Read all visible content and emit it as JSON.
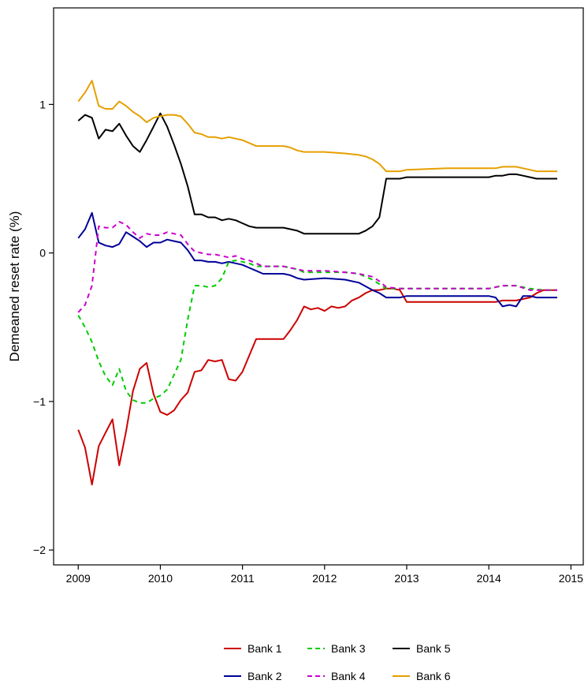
{
  "chart_data": {
    "type": "line",
    "title": "",
    "xlabel": "",
    "ylabel": "Demeaned reset rate (%)",
    "xlim": [
      2008.7,
      2015.15
    ],
    "ylim": [
      -2.1,
      1.65
    ],
    "xticks": [
      2009,
      2010,
      2011,
      2012,
      2013,
      2014,
      2015
    ],
    "xtick_labels": [
      "2009",
      "2010",
      "2011",
      "2012",
      "2013",
      "2014",
      "2015"
    ],
    "yticks": [
      -2,
      -1,
      0,
      1
    ],
    "ytick_labels": [
      "−2",
      "−1",
      "0",
      "1"
    ],
    "grid": false,
    "legend_position": "bottom",
    "series": [
      {
        "name": "Bank 1",
        "color": "#cc0000",
        "dash": "solid",
        "x": [
          2009.0,
          2009.083,
          2009.167,
          2009.25,
          2009.333,
          2009.417,
          2009.5,
          2009.583,
          2009.667,
          2009.75,
          2009.833,
          2009.917,
          2010.0,
          2010.083,
          2010.167,
          2010.25,
          2010.333,
          2010.417,
          2010.5,
          2010.583,
          2010.667,
          2010.75,
          2010.833,
          2010.917,
          2011.0,
          2011.083,
          2011.167,
          2011.25,
          2011.333,
          2011.417,
          2011.5,
          2011.583,
          2011.667,
          2011.75,
          2011.833,
          2011.917,
          2012.0,
          2012.083,
          2012.167,
          2012.25,
          2012.333,
          2012.417,
          2012.5,
          2012.583,
          2012.667,
          2012.75,
          2012.833,
          2012.917,
          2013.0,
          2013.5,
          2014.0,
          2014.083,
          2014.167,
          2014.25,
          2014.333,
          2014.417,
          2014.5,
          2014.583,
          2014.667,
          2014.833
        ],
        "y": [
          -1.19,
          -1.31,
          -1.56,
          -1.3,
          -1.21,
          -1.12,
          -1.43,
          -1.2,
          -0.93,
          -0.78,
          -0.74,
          -0.95,
          -1.07,
          -1.09,
          -1.06,
          -0.99,
          -0.94,
          -0.8,
          -0.79,
          -0.72,
          -0.73,
          -0.72,
          -0.85,
          -0.86,
          -0.8,
          -0.69,
          -0.58,
          -0.58,
          -0.58,
          -0.58,
          -0.58,
          -0.52,
          -0.45,
          -0.36,
          -0.38,
          -0.37,
          -0.39,
          -0.36,
          -0.37,
          -0.36,
          -0.32,
          -0.3,
          -0.27,
          -0.25,
          -0.25,
          -0.24,
          -0.24,
          -0.25,
          -0.33,
          -0.33,
          -0.33,
          -0.33,
          -0.32,
          -0.32,
          -0.32,
          -0.31,
          -0.3,
          -0.27,
          -0.25,
          -0.25
        ]
      },
      {
        "name": "Bank 2",
        "color": "#000099",
        "dash": "solid",
        "x": [
          2009.0,
          2009.083,
          2009.167,
          2009.25,
          2009.333,
          2009.417,
          2009.5,
          2009.583,
          2009.667,
          2009.75,
          2009.833,
          2009.917,
          2010.0,
          2010.083,
          2010.167,
          2010.25,
          2010.333,
          2010.417,
          2010.5,
          2010.583,
          2010.667,
          2010.75,
          2010.833,
          2010.917,
          2011.0,
          2011.083,
          2011.167,
          2011.25,
          2011.5,
          2011.583,
          2011.667,
          2011.75,
          2012.0,
          2012.25,
          2012.417,
          2012.583,
          2012.667,
          2012.75,
          2012.917,
          2013.0,
          2013.5,
          2014.0,
          2014.083,
          2014.167,
          2014.25,
          2014.333,
          2014.417,
          2014.5,
          2014.583,
          2014.833
        ],
        "y": [
          0.1,
          0.16,
          0.27,
          0.07,
          0.05,
          0.04,
          0.06,
          0.14,
          0.11,
          0.08,
          0.04,
          0.07,
          0.07,
          0.09,
          0.08,
          0.07,
          0.02,
          -0.05,
          -0.05,
          -0.06,
          -0.06,
          -0.07,
          -0.06,
          -0.07,
          -0.08,
          -0.1,
          -0.12,
          -0.14,
          -0.14,
          -0.15,
          -0.17,
          -0.18,
          -0.17,
          -0.18,
          -0.2,
          -0.25,
          -0.27,
          -0.3,
          -0.3,
          -0.29,
          -0.29,
          -0.29,
          -0.3,
          -0.36,
          -0.35,
          -0.36,
          -0.29,
          -0.29,
          -0.3,
          -0.3
        ]
      },
      {
        "name": "Bank 3",
        "color": "#00cc00",
        "dash": "dashed",
        "x": [
          2009.0,
          2009.083,
          2009.167,
          2009.25,
          2009.333,
          2009.417,
          2009.5,
          2009.583,
          2009.667,
          2009.75,
          2009.833,
          2009.917,
          2010.0,
          2010.083,
          2010.167,
          2010.25,
          2010.333,
          2010.417,
          2010.5,
          2010.583,
          2010.667,
          2010.75,
          2010.833,
          2010.917,
          2011.0,
          2011.083,
          2011.167,
          2011.5,
          2011.667,
          2011.75,
          2012.0,
          2012.25,
          2012.417,
          2012.583,
          2012.75,
          2012.917,
          2013.0,
          2013.5,
          2014.0,
          2014.167,
          2014.333,
          2014.5,
          2014.667,
          2014.833
        ],
        "y": [
          -0.42,
          -0.5,
          -0.6,
          -0.73,
          -0.83,
          -0.89,
          -0.78,
          -0.93,
          -0.99,
          -1.01,
          -1.01,
          -0.98,
          -0.96,
          -0.92,
          -0.82,
          -0.72,
          -0.45,
          -0.22,
          -0.22,
          -0.23,
          -0.22,
          -0.17,
          -0.06,
          -0.05,
          -0.06,
          -0.07,
          -0.09,
          -0.09,
          -0.11,
          -0.13,
          -0.13,
          -0.13,
          -0.14,
          -0.18,
          -0.24,
          -0.24,
          -0.24,
          -0.24,
          -0.24,
          -0.22,
          -0.22,
          -0.24,
          -0.25,
          -0.25
        ]
      },
      {
        "name": "Bank 4",
        "color": "#cc00cc",
        "dash": "dashed",
        "x": [
          2009.0,
          2009.083,
          2009.167,
          2009.25,
          2009.333,
          2009.417,
          2009.5,
          2009.583,
          2009.667,
          2009.75,
          2009.833,
          2009.917,
          2010.0,
          2010.083,
          2010.167,
          2010.25,
          2010.333,
          2010.417,
          2010.5,
          2010.583,
          2010.667,
          2010.75,
          2010.833,
          2010.917,
          2011.0,
          2011.083,
          2011.167,
          2011.25,
          2011.5,
          2011.583,
          2011.667,
          2011.75,
          2012.0,
          2012.25,
          2012.417,
          2012.583,
          2012.667,
          2012.75,
          2012.917,
          2013.0,
          2013.5,
          2014.0,
          2014.167,
          2014.333,
          2014.5,
          2014.833
        ],
        "y": [
          -0.4,
          -0.35,
          -0.22,
          0.18,
          0.17,
          0.17,
          0.21,
          0.19,
          0.14,
          0.1,
          0.13,
          0.12,
          0.12,
          0.14,
          0.13,
          0.12,
          0.06,
          0.01,
          0.0,
          -0.01,
          -0.01,
          -0.02,
          -0.03,
          -0.02,
          -0.04,
          -0.05,
          -0.07,
          -0.09,
          -0.09,
          -0.1,
          -0.11,
          -0.12,
          -0.12,
          -0.13,
          -0.14,
          -0.16,
          -0.19,
          -0.23,
          -0.24,
          -0.24,
          -0.24,
          -0.24,
          -0.22,
          -0.22,
          -0.25,
          -0.25
        ]
      },
      {
        "name": "Bank 5",
        "color": "#000000",
        "dash": "solid",
        "x": [
          2009.0,
          2009.083,
          2009.167,
          2009.25,
          2009.333,
          2009.417,
          2009.5,
          2009.583,
          2009.667,
          2009.75,
          2009.833,
          2009.917,
          2010.0,
          2010.083,
          2010.167,
          2010.25,
          2010.333,
          2010.417,
          2010.5,
          2010.583,
          2010.667,
          2010.75,
          2010.833,
          2010.917,
          2011.0,
          2011.083,
          2011.167,
          2011.25,
          2011.5,
          2011.583,
          2011.667,
          2011.75,
          2012.0,
          2012.25,
          2012.417,
          2012.5,
          2012.583,
          2012.667,
          2012.75,
          2012.833,
          2012.917,
          2013.0,
          2013.5,
          2014.0,
          2014.083,
          2014.167,
          2014.25,
          2014.333,
          2014.417,
          2014.5,
          2014.583,
          2014.833
        ],
        "y": [
          0.89,
          0.93,
          0.91,
          0.77,
          0.83,
          0.82,
          0.87,
          0.79,
          0.72,
          0.68,
          0.76,
          0.85,
          0.94,
          0.85,
          0.73,
          0.6,
          0.45,
          0.26,
          0.26,
          0.24,
          0.24,
          0.22,
          0.23,
          0.22,
          0.2,
          0.18,
          0.17,
          0.17,
          0.17,
          0.16,
          0.15,
          0.13,
          0.13,
          0.13,
          0.13,
          0.15,
          0.18,
          0.24,
          0.5,
          0.5,
          0.5,
          0.51,
          0.51,
          0.51,
          0.52,
          0.52,
          0.53,
          0.53,
          0.52,
          0.51,
          0.5,
          0.5
        ]
      },
      {
        "name": "Bank 6",
        "color": "#e69f00",
        "dash": "solid",
        "x": [
          2009.0,
          2009.083,
          2009.167,
          2009.25,
          2009.333,
          2009.417,
          2009.5,
          2009.583,
          2009.667,
          2009.75,
          2009.833,
          2009.917,
          2010.0,
          2010.083,
          2010.167,
          2010.25,
          2010.333,
          2010.417,
          2010.5,
          2010.583,
          2010.667,
          2010.75,
          2010.833,
          2010.917,
          2011.0,
          2011.083,
          2011.167,
          2011.25,
          2011.5,
          2011.583,
          2011.667,
          2011.75,
          2012.0,
          2012.25,
          2012.417,
          2012.5,
          2012.583,
          2012.667,
          2012.75,
          2012.917,
          2013.0,
          2013.5,
          2014.0,
          2014.083,
          2014.167,
          2014.25,
          2014.333,
          2014.417,
          2014.5,
          2014.583,
          2014.833
        ],
        "y": [
          1.02,
          1.08,
          1.16,
          0.99,
          0.97,
          0.97,
          1.02,
          0.99,
          0.95,
          0.92,
          0.88,
          0.91,
          0.92,
          0.93,
          0.93,
          0.92,
          0.87,
          0.81,
          0.8,
          0.78,
          0.78,
          0.77,
          0.78,
          0.77,
          0.76,
          0.74,
          0.72,
          0.72,
          0.72,
          0.71,
          0.69,
          0.68,
          0.68,
          0.67,
          0.66,
          0.65,
          0.63,
          0.6,
          0.55,
          0.55,
          0.56,
          0.57,
          0.57,
          0.57,
          0.58,
          0.58,
          0.58,
          0.57,
          0.56,
          0.55,
          0.55
        ]
      }
    ]
  }
}
